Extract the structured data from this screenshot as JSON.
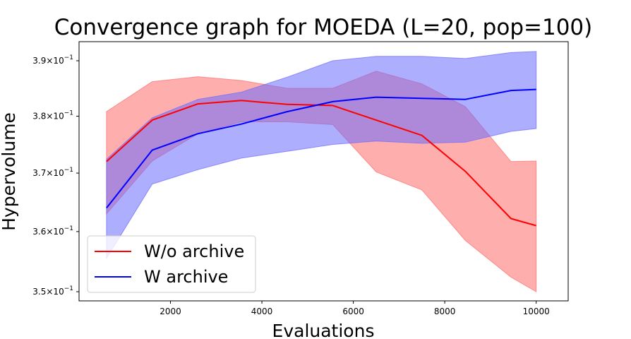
{
  "chart_data": {
    "type": "line",
    "title": "Convergence graph for MOEDA (L=20, pop=100)",
    "xlabel": "Evaluations",
    "ylabel": "Hypervolume",
    "y_scale": "log",
    "xlim": [
      0,
      10700
    ],
    "ylim": [
      0.3485,
      0.3935
    ],
    "x_ticks": [
      2000,
      4000,
      6000,
      8000,
      10000
    ],
    "x_tick_labels": [
      "2000",
      "4000",
      "6000",
      "8000",
      "10000"
    ],
    "y_ticks": [
      0.35,
      0.36,
      0.37,
      0.38,
      0.39
    ],
    "y_tick_labels": [
      {
        "mantissa": "3.5",
        "times": "×",
        "base": "10",
        "exp": "−1"
      },
      {
        "mantissa": "3.6",
        "times": "×",
        "base": "10",
        "exp": "−1"
      },
      {
        "mantissa": "3.7",
        "times": "×",
        "base": "10",
        "exp": "−1"
      },
      {
        "mantissa": "3.8",
        "times": "×",
        "base": "10",
        "exp": "−1"
      },
      {
        "mantissa": "3.9",
        "times": "×",
        "base": "10",
        "exp": "−1"
      }
    ],
    "grid": false,
    "legend_position": "lower-left",
    "x": [
      600,
      1600,
      2600,
      3550,
      4550,
      5550,
      6500,
      7500,
      8450,
      9450,
      10000
    ],
    "series": [
      {
        "name": "W/o archive",
        "color": "#ff0000",
        "band_color": "#ff6b6b",
        "values": [
          0.372,
          0.3793,
          0.3822,
          0.3828,
          0.3821,
          0.3819,
          0.3793,
          0.3766,
          0.3703,
          0.3622,
          0.361
        ],
        "lower": [
          0.363,
          0.3721,
          0.3769,
          0.379,
          0.379,
          0.3785,
          0.3702,
          0.3671,
          0.3585,
          0.3524,
          0.35
        ],
        "upper": [
          0.3808,
          0.3862,
          0.3871,
          0.3864,
          0.385,
          0.385,
          0.3881,
          0.3858,
          0.3817,
          0.372,
          0.3721
        ]
      },
      {
        "name": "W archive",
        "color": "#0000ff",
        "band_color": "#6b6bff",
        "values": [
          0.364,
          0.374,
          0.3769,
          0.3786,
          0.3808,
          0.3826,
          0.3834,
          0.3832,
          0.383,
          0.3846,
          0.3848
        ],
        "lower": [
          0.3555,
          0.3681,
          0.3706,
          0.3726,
          0.3738,
          0.375,
          0.3756,
          0.3752,
          0.3754,
          0.3773,
          0.3778
        ],
        "upper": [
          0.3724,
          0.3797,
          0.383,
          0.3843,
          0.387,
          0.39,
          0.3908,
          0.3908,
          0.3904,
          0.3915,
          0.3917
        ]
      }
    ]
  }
}
